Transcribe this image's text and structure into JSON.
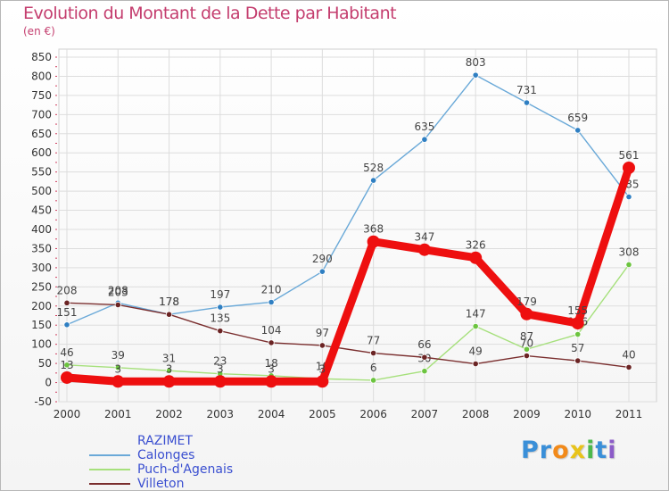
{
  "chart_data": {
    "type": "line",
    "title": "Evolution du Montant de la Dette par Habitant",
    "subtitle": "(en €)",
    "categories": [
      "2000",
      "2001",
      "2002",
      "2003",
      "2004",
      "2005",
      "2006",
      "2007",
      "2008",
      "2009",
      "2010",
      "2011"
    ],
    "y_ticks": [
      "850",
      "800",
      "750",
      "700",
      "650",
      "600",
      "550",
      "500",
      "450",
      "400",
      "350",
      "300",
      "250",
      "200",
      "150",
      "100",
      "50",
      "0",
      "-50"
    ],
    "ylim": [
      -50,
      850
    ],
    "grid": true,
    "series": [
      {
        "name": "Calonges",
        "color": "#6aa9d8",
        "marker": "#2f7fc2",
        "values": [
          151,
          208,
          178,
          197,
          210,
          290,
          528,
          635,
          803,
          731,
          659,
          485
        ],
        "labels": [
          "151",
          "208",
          "178",
          "197",
          "210",
          "290",
          "528",
          "635",
          "803",
          "731",
          "659",
          "485"
        ]
      },
      {
        "name": "Puch-d'Agenais",
        "color": "#a6e07c",
        "marker": "#6cc43f",
        "values": [
          46,
          39,
          31,
          23,
          18,
          10,
          6,
          30,
          147,
          87,
          126,
          308
        ],
        "labels": [
          "46",
          "39",
          "31",
          "23",
          "18",
          "10",
          "6",
          "30",
          "147",
          "87",
          "126",
          "308"
        ]
      },
      {
        "name": "Villeton",
        "color": "#7a2e2e",
        "marker": "#6b2424",
        "values": [
          208,
          203,
          178,
          135,
          104,
          97,
          77,
          66,
          49,
          70,
          57,
          40
        ],
        "labels": [
          "208",
          "203",
          "178",
          "135",
          "104",
          "97",
          "77",
          "66",
          "49",
          "70",
          "57",
          "40"
        ]
      },
      {
        "name": "RAZIMET",
        "color": "#ee0f0f",
        "marker": "#ee0f0f",
        "values": [
          13,
          3,
          3,
          3,
          3,
          3,
          368,
          347,
          326,
          179,
          155,
          561
        ],
        "labels": [
          "13",
          "3",
          "3",
          "3",
          "3",
          "3",
          "368",
          "347",
          "326",
          "179",
          "155",
          "561"
        ]
      }
    ],
    "legend_order": [
      "RAZIMET",
      "Calonges",
      "Puch-d'Agenais",
      "Villeton"
    ]
  },
  "logo": {
    "letters": [
      "P",
      "r",
      "o",
      "x",
      "i",
      "t",
      "i"
    ],
    "colors": [
      "#3a8fd8",
      "#3a8fd8",
      "#f28a1a",
      "#e8c31a",
      "#4cb84c",
      "#3a8fd8",
      "#8c5cc8"
    ]
  }
}
